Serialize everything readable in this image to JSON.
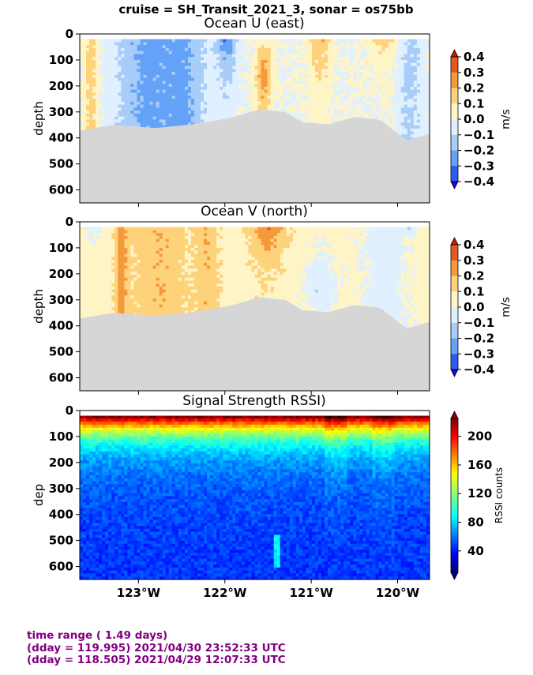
{
  "suptitle": "cruise = SH_Transit_2021_3,  sonar = os75bb",
  "footer": {
    "line1": "time range ( 1.49 days)",
    "line2": "(dday = 119.995) 2021/04/30 23:52:33 UTC",
    "line3": "(dday = 118.505) 2021/04/29 12:07:33 UTC"
  },
  "chart_data": [
    {
      "type": "heatmap",
      "title": "Ocean U (east)",
      "ylabel": "depth",
      "y_inverted": true,
      "ylim": [
        650,
        0
      ],
      "yticks": [
        "0",
        "100",
        "200",
        "300",
        "400",
        "500",
        "600"
      ],
      "xlim": [
        -123.68,
        -119.63
      ],
      "colorbar": {
        "label": "m/s",
        "range": [
          -0.4,
          0.4
        ],
        "ticks": [
          "0.4",
          "0.3",
          "0.2",
          "0.1",
          "0.0",
          "−0.1",
          "−0.2",
          "−0.3",
          "−0.4"
        ],
        "colors": [
          "#2200d8",
          "#2d5bf0",
          "#64a2f7",
          "#a8cdf9",
          "#e0f0ff",
          "#fff4c6",
          "#fdd27a",
          "#f59a3c",
          "#e8571e",
          "#c01a08"
        ],
        "extend": "both"
      },
      "bottom_depth_estimate": [
        [
          -123.68,
          372
        ],
        [
          -123.3,
          350
        ],
        [
          -122.8,
          362
        ],
        [
          -122.3,
          345
        ],
        [
          -121.9,
          320
        ],
        [
          -121.6,
          290
        ],
        [
          -121.3,
          300
        ],
        [
          -121.1,
          340
        ],
        [
          -120.8,
          348
        ],
        [
          -120.5,
          320
        ],
        [
          -120.2,
          330
        ],
        [
          -119.9,
          410
        ],
        [
          -119.63,
          385
        ]
      ]
    },
    {
      "type": "heatmap",
      "title": "Ocean V (north)",
      "ylabel": "depth",
      "y_inverted": true,
      "ylim": [
        650,
        0
      ],
      "yticks": [
        "0",
        "100",
        "200",
        "300",
        "400",
        "500",
        "600"
      ],
      "xlim": [
        -123.68,
        -119.63
      ],
      "colorbar": {
        "label": "m/s",
        "range": [
          -0.4,
          0.4
        ],
        "ticks": [
          "0.4",
          "0.3",
          "0.2",
          "0.1",
          "0.0",
          "−0.1",
          "−0.2",
          "−0.3",
          "−0.4"
        ],
        "colors": [
          "#2200d8",
          "#2d5bf0",
          "#64a2f7",
          "#a8cdf9",
          "#e0f0ff",
          "#fff4c6",
          "#fdd27a",
          "#f59a3c",
          "#e8571e",
          "#c01a08"
        ],
        "extend": "both"
      }
    },
    {
      "type": "heatmap",
      "title": "Signal Strength RSSI)",
      "ylabel": "dep",
      "y_inverted": true,
      "ylim": [
        650,
        0
      ],
      "yticks": [
        "0",
        "100",
        "200",
        "300",
        "400",
        "500",
        "600"
      ],
      "xlim": [
        -123.68,
        -119.63
      ],
      "xticks": [
        "123°W",
        "122°W",
        "121°W",
        "120°W"
      ],
      "xtick_values": [
        -123,
        -122,
        -121,
        -120
      ],
      "colorbar": {
        "label": "RSSI counts",
        "range": [
          10,
          225
        ],
        "ticks": [
          "200",
          "160",
          "120",
          "80",
          "40"
        ],
        "colormap": "jet",
        "extend": "both"
      }
    }
  ]
}
